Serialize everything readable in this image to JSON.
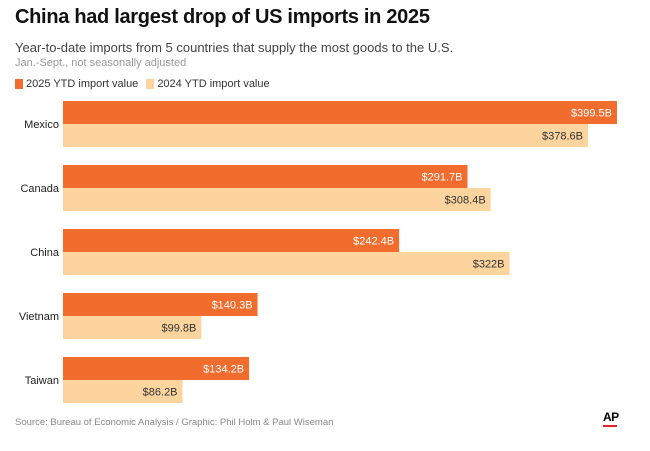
{
  "chart_data": {
    "type": "bar",
    "orientation": "horizontal",
    "title": "China had largest drop of US imports in 2025",
    "subtitle": "Year-to-date imports from 5 countries that supply the most goods to the U.S.",
    "note": "Jan.-Sept., not seasonally adjusted",
    "categories": [
      "Mexico",
      "Canada",
      "China",
      "Vietnam",
      "Taiwan"
    ],
    "series": [
      {
        "name": "2025 YTD import value",
        "color": "#f26c2e",
        "values": [
          399.5,
          291.7,
          242.4,
          140.3,
          134.2
        ],
        "labels": [
          "$399.5B",
          "$291.7B",
          "$242.4B",
          "$140.3B",
          "$134.2B"
        ],
        "label_color": "#ffffff"
      },
      {
        "name": "2024 YTD import value",
        "color": "#fdd49e",
        "values": [
          378.6,
          308.4,
          322,
          99.8,
          86.2
        ],
        "labels": [
          "$378.6B",
          "$308.4B",
          "$322B",
          "$99.8B",
          "$86.2B"
        ],
        "label_color": "#333333"
      }
    ],
    "unit": "billions of USD",
    "xlim": [
      0,
      399.5
    ],
    "grid": false,
    "legend": "top-left"
  },
  "source": "Source: Bureau of Economic Analysis / Graphic: Phil Holm & Paul Wiseman",
  "logo": "AP"
}
